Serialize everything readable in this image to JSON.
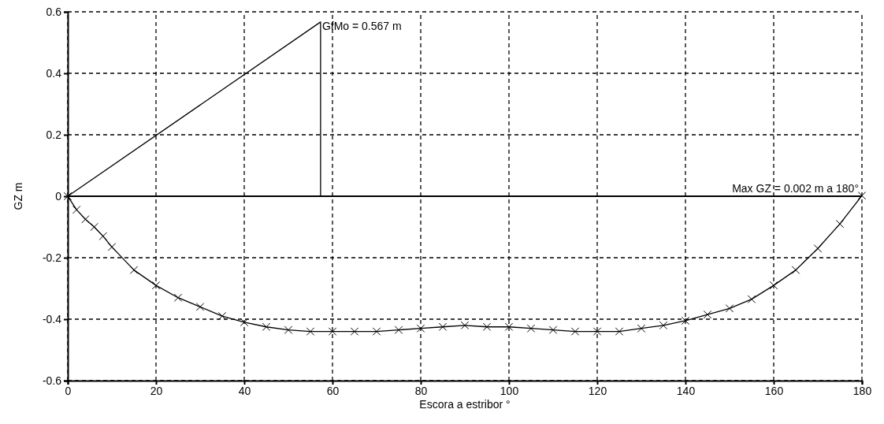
{
  "chart_data": {
    "type": "line",
    "xlabel": "Escora a estribor  °",
    "ylabel": "GZ  m",
    "xlim": [
      0,
      180
    ],
    "ylim": [
      -0.6,
      0.6
    ],
    "xticks": [
      0,
      20,
      40,
      60,
      80,
      100,
      120,
      140,
      160,
      180
    ],
    "yticks": [
      -0.6,
      -0.4,
      -0.2,
      0,
      0.2,
      0.4,
      0.6
    ],
    "grid": true,
    "series": [
      {
        "color": "#000000",
        "marker": "cross",
        "x": [
          0,
          2,
          4,
          6,
          8,
          10,
          15,
          20,
          25,
          30,
          35,
          40,
          45,
          50,
          55,
          60,
          65,
          70,
          75,
          80,
          85,
          90,
          95,
          100,
          105,
          110,
          115,
          120,
          125,
          130,
          135,
          140,
          145,
          150,
          155,
          160,
          165,
          170,
          175,
          180
        ],
        "values": [
          0,
          -0.044,
          -0.075,
          -0.1,
          -0.13,
          -0.165,
          -0.24,
          -0.29,
          -0.33,
          -0.36,
          -0.39,
          -0.41,
          -0.425,
          -0.435,
          -0.44,
          -0.44,
          -0.44,
          -0.44,
          -0.435,
          -0.43,
          -0.425,
          -0.42,
          -0.425,
          -0.425,
          -0.43,
          -0.435,
          -0.44,
          -0.44,
          -0.44,
          -0.43,
          -0.42,
          -0.405,
          -0.385,
          -0.365,
          -0.335,
          -0.29,
          -0.24,
          -0.17,
          -0.09,
          0.002
        ]
      },
      {
        "color": "#000000",
        "marker": "none",
        "x": [
          0,
          57.3,
          57.3
        ],
        "values": [
          0,
          0.567,
          0
        ]
      }
    ],
    "ref_lines": [
      {
        "axis": "y",
        "value": 0,
        "color": "#000000",
        "line_style": "solid"
      }
    ],
    "annotations": [
      {
        "text": "GfMo = 0.567 m",
        "x": 57.3,
        "y": 0.567
      },
      {
        "text": "Max GZ = 0.002 m a 180°",
        "x": 180,
        "y": 0.002
      }
    ]
  }
}
